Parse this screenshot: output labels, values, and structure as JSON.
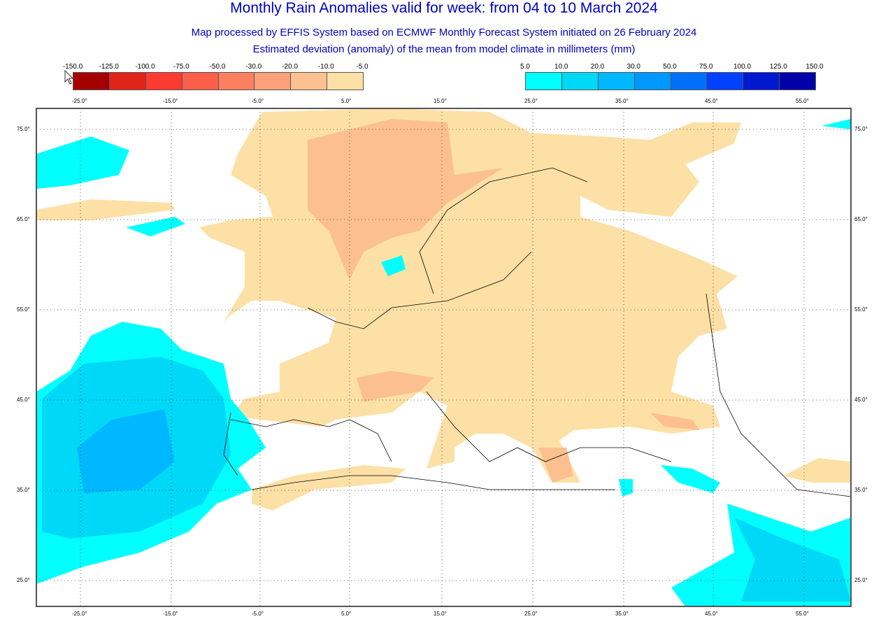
{
  "title": "Monthly Rain Anomalies valid for week: from 04 to 10 March 2024",
  "subtitle1": "Map processed by EFFIS System based on ECMWF Monthly Forecast System initiated on 26 February 2024",
  "subtitle2": "Estimated deviation (anomaly) of the mean from model climate in millimeters (mm)",
  "legend_negative": {
    "labels": [
      "-150.0",
      "-125.0",
      "-100.0",
      "-75.0",
      "-50.0",
      "-30.0",
      "-20.0",
      "-10.0",
      "-5.0"
    ],
    "colors": [
      "#a50000",
      "#e0241a",
      "#fa3c30",
      "#fb5f48",
      "#fc8060",
      "#fca07a",
      "#fdc090",
      "#fde0a6"
    ]
  },
  "legend_positive": {
    "labels": [
      "5.0",
      "10.0",
      "20.0",
      "30.0",
      "50.0",
      "75.0",
      "100.0",
      "125.0",
      "150.0"
    ],
    "colors": [
      "#00ffff",
      "#00d8f8",
      "#00b8ff",
      "#0098ff",
      "#0070f8",
      "#0040ff",
      "#0018d0",
      "#0000a8"
    ]
  },
  "lon_labels": [
    "-25.0°",
    "-15.0°",
    "-5.0°",
    "5.0°",
    "15.0°",
    "25.0°",
    "35.0°",
    "45.0°",
    "55.0°"
  ],
  "lat_labels": [
    "75.0°",
    "65.0°",
    "55.0°",
    "45.0°",
    "35.0°",
    "25.0°"
  ]
}
